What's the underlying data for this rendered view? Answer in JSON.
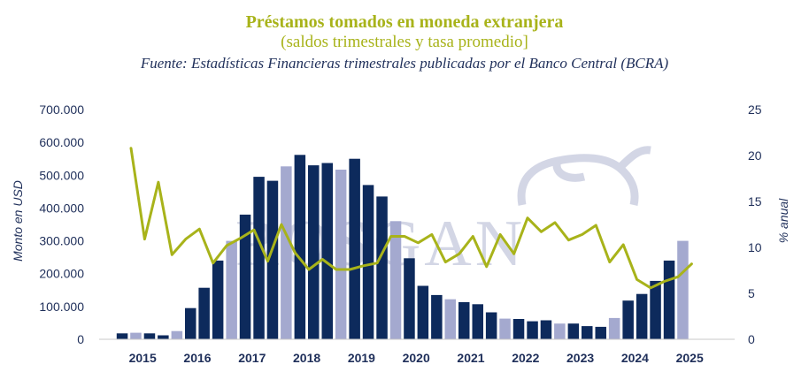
{
  "chart_data": {
    "type": "bar+line",
    "title": "Préstamos tomados en moneda extranjera",
    "subtitle": "(saldos trimestrales y tasa promedio]",
    "source": "Fuente: Estadísticas Financieras trimestrales publicadas por el Banco Central (BCRA)",
    "ylabel": "Monto en USD",
    "y2label": "% anual",
    "watermark": "ROSGAN",
    "ylim": [
      0,
      700000
    ],
    "y2lim": [
      0,
      25
    ],
    "yticks": [
      "700.000",
      "600.000",
      "500.000",
      "400.000",
      "300.000",
      "200.000",
      "100.000",
      "0"
    ],
    "y2ticks": [
      "25",
      "20",
      "15",
      "10",
      "5",
      "0"
    ],
    "xticks": [
      "2015",
      "2016",
      "2017",
      "2018",
      "2019",
      "2020",
      "2021",
      "2022",
      "2023",
      "2024",
      "2025"
    ],
    "colors": {
      "dark": "#0d2a5c",
      "light": "#a4a9cf",
      "line": "#a8b31a",
      "text": "#1f2f5a"
    },
    "bars": [
      {
        "v": 18000,
        "c": "dark"
      },
      {
        "v": 20000,
        "c": "light"
      },
      {
        "v": 18000,
        "c": "dark"
      },
      {
        "v": 12000,
        "c": "dark"
      },
      {
        "v": 25000,
        "c": "light"
      },
      {
        "v": 95000,
        "c": "dark"
      },
      {
        "v": 157000,
        "c": "dark"
      },
      {
        "v": 240000,
        "c": "dark"
      },
      {
        "v": 300000,
        "c": "light"
      },
      {
        "v": 380000,
        "c": "dark"
      },
      {
        "v": 495000,
        "c": "dark"
      },
      {
        "v": 483000,
        "c": "dark"
      },
      {
        "v": 527000,
        "c": "light"
      },
      {
        "v": 562000,
        "c": "dark"
      },
      {
        "v": 530000,
        "c": "dark"
      },
      {
        "v": 537000,
        "c": "dark"
      },
      {
        "v": 517000,
        "c": "light"
      },
      {
        "v": 550000,
        "c": "dark"
      },
      {
        "v": 470000,
        "c": "dark"
      },
      {
        "v": 435000,
        "c": "dark"
      },
      {
        "v": 360000,
        "c": "light"
      },
      {
        "v": 247000,
        "c": "dark"
      },
      {
        "v": 163000,
        "c": "dark"
      },
      {
        "v": 135000,
        "c": "dark"
      },
      {
        "v": 122000,
        "c": "light"
      },
      {
        "v": 113000,
        "c": "dark"
      },
      {
        "v": 107000,
        "c": "dark"
      },
      {
        "v": 82000,
        "c": "dark"
      },
      {
        "v": 63000,
        "c": "light"
      },
      {
        "v": 62000,
        "c": "dark"
      },
      {
        "v": 55000,
        "c": "dark"
      },
      {
        "v": 58000,
        "c": "dark"
      },
      {
        "v": 48000,
        "c": "light"
      },
      {
        "v": 48000,
        "c": "dark"
      },
      {
        "v": 40000,
        "c": "dark"
      },
      {
        "v": 38000,
        "c": "dark"
      },
      {
        "v": 65000,
        "c": "light"
      },
      {
        "v": 118000,
        "c": "dark"
      },
      {
        "v": 138000,
        "c": "dark"
      },
      {
        "v": 178000,
        "c": "dark"
      },
      {
        "v": 240000,
        "c": "dark"
      },
      {
        "v": 300000,
        "c": "light"
      }
    ],
    "rate": [
      20.8,
      10.9,
      17.1,
      9.2,
      10.9,
      12.0,
      8.3,
      10.2,
      11.0,
      11.9,
      8.5,
      12.5,
      9.4,
      7.6,
      8.7,
      7.6,
      7.6,
      8.0,
      8.3,
      11.2,
      11.2,
      10.5,
      11.4,
      8.4,
      9.3,
      11.2,
      7.9,
      11.4,
      9.3,
      13.2,
      11.7,
      12.7,
      10.8,
      11.4,
      12.4,
      8.4,
      10.3,
      6.5,
      5.6,
      6.3,
      6.8,
      8.2
    ]
  }
}
